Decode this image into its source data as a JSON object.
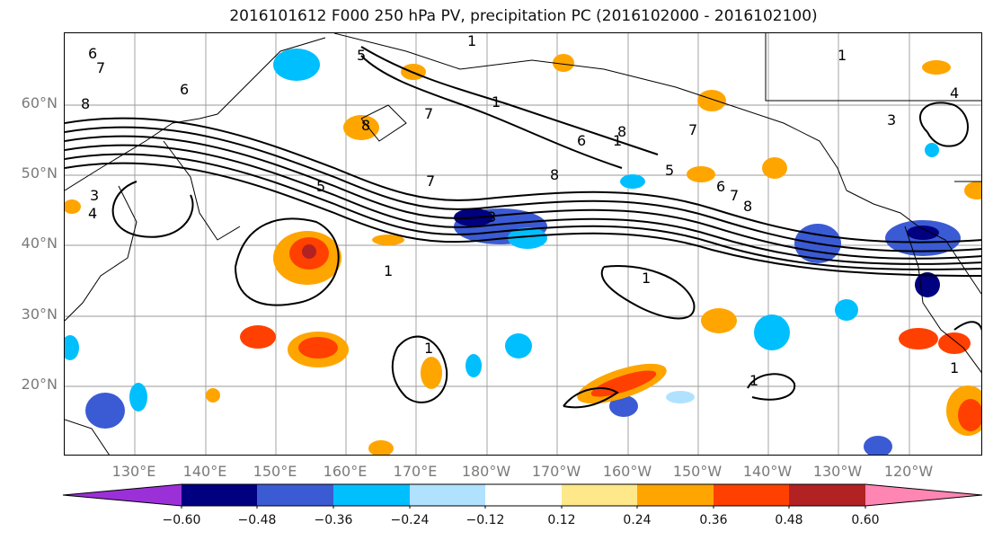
{
  "title": "2016101612 F000 250 hPa PV, precipitation PC (2016102000 - 2016102100)",
  "map": {
    "lat_ticks": [
      "60°N",
      "50°N",
      "40°N",
      "30°N",
      "20°N"
    ],
    "lon_ticks": [
      "130°E",
      "140°E",
      "150°E",
      "160°E",
      "170°E",
      "180°W",
      "170°W",
      "160°W",
      "150°W",
      "140°W",
      "130°W",
      "120°W"
    ],
    "contour_labels": [
      "6",
      "7",
      "8",
      "6",
      "1",
      "5",
      "3",
      "4",
      "5",
      "1",
      "7",
      "3",
      "8",
      "7",
      "1",
      "8",
      "6",
      "8",
      "7",
      "1",
      "5",
      "6",
      "7",
      "8",
      "1",
      "4",
      "3",
      "1",
      "1",
      "1",
      "1"
    ],
    "colors": {
      "land_outline": "#000000",
      "gridline": "#9a9a9a",
      "pv_contour": "#000000"
    }
  },
  "colorbar": {
    "tick_labels": [
      "−0.60",
      "−0.48",
      "−0.36",
      "−0.24",
      "−0.12",
      "0.12",
      "0.24",
      "0.36",
      "0.48",
      "0.60"
    ],
    "bins": [
      {
        "color": "#9b30d9"
      },
      {
        "color": "#000080"
      },
      {
        "color": "#3b5bd4"
      },
      {
        "color": "#00bfff"
      },
      {
        "color": "#b0e2ff"
      },
      {
        "color": "#ffffff"
      },
      {
        "color": "#ffe88a"
      },
      {
        "color": "#ffa500"
      },
      {
        "color": "#ff4000"
      },
      {
        "color": "#b22222"
      },
      {
        "color": "#ff85b3"
      }
    ]
  }
}
